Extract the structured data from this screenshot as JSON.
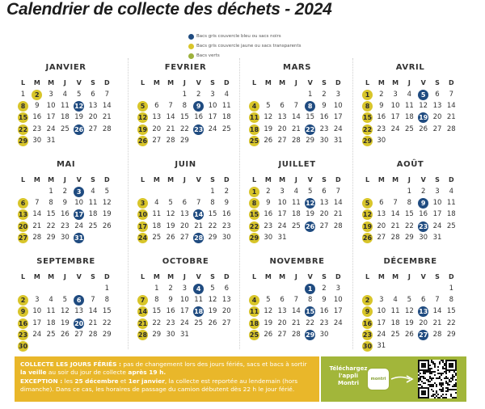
{
  "title": "Calendrier de collecte des déchets - 2024",
  "legend": [
    {
      "label": "Bacs gris couvercle bleu ou sacs noirs",
      "color": "#1f4b80"
    },
    {
      "label": "Bacs gris couvercle jaune ou sacs transparents",
      "color": "#d8c52a"
    },
    {
      "label": "Bacs verts",
      "color": "#9db13c"
    }
  ],
  "colors": {
    "yellow": "#d8c52a",
    "blue": "#1f4b80",
    "green": "#9db13c",
    "banner": "#e9b72a",
    "app_box": "#a2b63a"
  },
  "weekdays": [
    "L",
    "M",
    "M",
    "J",
    "V",
    "S",
    "D"
  ],
  "months": [
    {
      "name": "JANVIER",
      "start": 0,
      "days": 31,
      "yellow": [
        2,
        8,
        15,
        22,
        29
      ],
      "blue": [
        12,
        26
      ],
      "green": []
    },
    {
      "name": "FEVRIER",
      "start": 3,
      "days": 29,
      "yellow": [
        5,
        12,
        19,
        26
      ],
      "blue": [
        9,
        23
      ],
      "green": []
    },
    {
      "name": "MARS",
      "start": 4,
      "days": 31,
      "yellow": [
        4,
        11,
        18,
        25
      ],
      "blue": [
        8,
        22
      ],
      "green": []
    },
    {
      "name": "AVRIL",
      "start": 0,
      "days": 30,
      "yellow": [
        1,
        8,
        15,
        22,
        29
      ],
      "blue": [
        5,
        19
      ],
      "green": []
    },
    {
      "name": "MAI",
      "start": 2,
      "days": 31,
      "yellow": [
        6,
        13,
        20,
        27
      ],
      "blue": [
        3,
        17,
        31
      ],
      "green": []
    },
    {
      "name": "JUIN",
      "start": 5,
      "days": 30,
      "yellow": [
        3,
        10,
        17,
        24
      ],
      "blue": [
        14,
        28
      ],
      "green": []
    },
    {
      "name": "JUILLET",
      "start": 0,
      "days": 31,
      "yellow": [
        1,
        8,
        15,
        22,
        29
      ],
      "blue": [
        12,
        26
      ],
      "green": []
    },
    {
      "name": "AOÛT",
      "start": 3,
      "days": 31,
      "yellow": [
        5,
        12,
        19,
        26
      ],
      "blue": [
        9,
        23
      ],
      "green": []
    },
    {
      "name": "SEPTEMBRE",
      "start": 6,
      "days": 30,
      "yellow": [
        2,
        9,
        16,
        23,
        30
      ],
      "blue": [
        6,
        20
      ],
      "green": []
    },
    {
      "name": "OCTOBRE",
      "start": 1,
      "days": 31,
      "yellow": [
        7,
        14,
        21,
        28
      ],
      "blue": [
        4,
        18
      ],
      "green": []
    },
    {
      "name": "NOVEMBRE",
      "start": 4,
      "days": 30,
      "yellow": [
        4,
        11,
        18,
        25
      ],
      "blue": [
        1,
        15,
        29
      ],
      "green": []
    },
    {
      "name": "DÉCEMBRE",
      "start": 6,
      "days": 31,
      "yellow": [
        2,
        9,
        16,
        23,
        30
      ],
      "blue": [
        13,
        27
      ],
      "green": []
    }
  ],
  "banner": {
    "holidays_heading": "COLLECTE LES JOURS FÉRIÉS :",
    "holidays_text_1": " pas de changement lors des jours fériés, sacs et bacs à sortir ",
    "eve_bold": "la veille",
    "holidays_text_2": " au soir du jour de collecte ",
    "after_bold": "après 19 h.",
    "exception_heading": "EXCEPTION :",
    "exception_text_1": " les ",
    "dates_bold": "25 décembre",
    "exception_text_2": " et ",
    "dates_bold_2": "1er janvier",
    "exception_text_3": ", la collecte est reportée au lendemain (hors dimanche). Dans ce cas, les horaires de passage du camion débutent dès 22 h le jour férié."
  },
  "app": {
    "line1": "Téléchargez",
    "line2": "l'appli",
    "line3": "Montri",
    "icon_label": "montri",
    "icon": "app-icon",
    "arrow_icon": "arrow-right-icon",
    "qr_icon": "qr-code-icon"
  }
}
